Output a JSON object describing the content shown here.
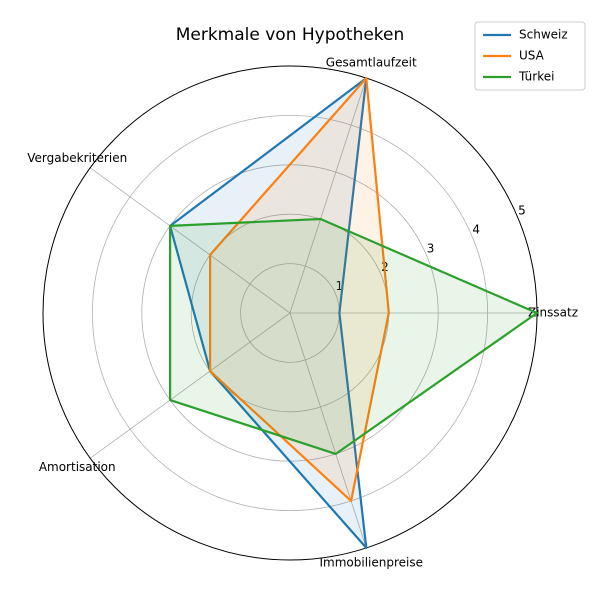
{
  "chart_data": {
    "type": "radar",
    "title": "Merkmale von Hypotheken",
    "categories": [
      "Zinssatz",
      "Gesamtlaufzeit",
      "Vergabekriterien",
      "Amortisation",
      "Immobilienpreise"
    ],
    "series": [
      {
        "name": "Schweiz",
        "color": "#1f77b4",
        "values": [
          1,
          5,
          3,
          2,
          5
        ]
      },
      {
        "name": "USA",
        "color": "#ff7f0e",
        "values": [
          2,
          5,
          2,
          2,
          4
        ]
      },
      {
        "name": "Türkei",
        "color": "#2ca02c",
        "values": [
          5,
          2,
          3,
          3,
          3
        ]
      }
    ],
    "ylim": [
      0,
      5
    ],
    "yticks": [
      1,
      2,
      3,
      4,
      5
    ],
    "grid": true,
    "legend": "upper right"
  }
}
